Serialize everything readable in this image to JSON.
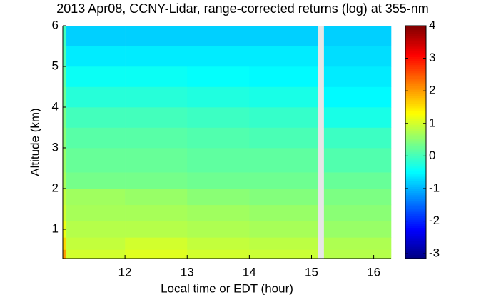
{
  "chart_data": {
    "type": "heatmap",
    "title": "2013 Apr08, CCNY-Lidar, range-corrected returns (log) at 355-nm",
    "xlabel": "Local time or EDT (hour)",
    "ylabel": "Altitude (km)",
    "colormap": "jet",
    "x_edges": [
      11,
      11.05,
      12,
      13,
      14,
      15.1,
      15.2,
      16.28
    ],
    "y_edges": [
      0.28,
      0.5,
      0.8,
      1.2,
      1.6,
      2.0,
      2.4,
      3.0,
      3.5,
      4.0,
      4.5,
      5.0,
      5.5,
      6.0
    ],
    "z": [
      [
        2.0,
        1.0,
        1.1,
        1.0,
        0.95,
        null,
        0.8
      ],
      [
        1.6,
        0.9,
        1.0,
        0.9,
        0.85,
        null,
        0.75
      ],
      [
        1.2,
        0.8,
        0.8,
        0.75,
        0.7,
        null,
        0.6
      ],
      [
        1.0,
        0.7,
        0.7,
        0.65,
        0.6,
        null,
        0.5
      ],
      [
        0.9,
        0.65,
        0.6,
        0.5,
        0.45,
        null,
        0.4
      ],
      [
        0.7,
        0.35,
        0.35,
        0.3,
        0.3,
        null,
        0.25
      ],
      [
        0.6,
        0.25,
        0.25,
        0.2,
        0.2,
        null,
        0.1
      ],
      [
        0.5,
        0.15,
        0.15,
        0.1,
        0.05,
        null,
        -0.05
      ],
      [
        0.4,
        0.0,
        0.0,
        -0.05,
        -0.1,
        null,
        -0.3
      ],
      [
        0.3,
        -0.2,
        -0.2,
        -0.25,
        -0.3,
        null,
        -0.5
      ],
      [
        0.2,
        -0.4,
        -0.4,
        -0.45,
        -0.5,
        null,
        -0.6
      ],
      [
        0.1,
        -0.6,
        -0.6,
        -0.6,
        -0.6,
        null,
        -0.7
      ],
      [
        0.0,
        -0.8,
        -0.8,
        -0.8,
        -0.8,
        null,
        -0.8
      ]
    ],
    "xlim": [
      11,
      16.28
    ],
    "xticks": [
      12,
      13,
      14,
      15,
      16
    ],
    "ylim": [
      0.28,
      6
    ],
    "yticks": [
      1,
      2,
      3,
      4,
      5,
      6
    ],
    "clim": [
      -3.15,
      4
    ],
    "cticks": [
      -3,
      -2,
      -1,
      0,
      1,
      2,
      3,
      4
    ]
  }
}
